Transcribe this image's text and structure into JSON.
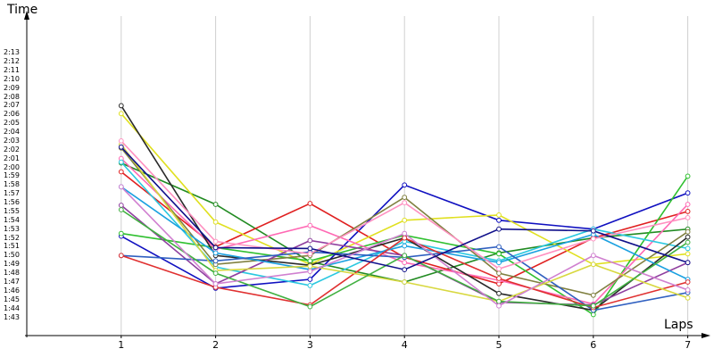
{
  "chart_data": {
    "type": "line",
    "ylabel": "Time",
    "xlabel": "Laps",
    "x": [
      1,
      2,
      3,
      4,
      5,
      6,
      7
    ],
    "y_ticks": [
      "1:43",
      "1:44",
      "1:45",
      "1:46",
      "1:47",
      "1:48",
      "1:49",
      "1:50",
      "1:51",
      "1:52",
      "1:53",
      "1:54",
      "1:55",
      "1:56",
      "1:57",
      "1:58",
      "1:59",
      "2:00",
      "2:01",
      "2:02",
      "2:03",
      "2:04",
      "2:05",
      "2:06",
      "2:07",
      "2:08",
      "2:09",
      "2:10",
      "2:11",
      "2:12",
      "2:13"
    ],
    "y_tick_seconds": [
      103,
      104,
      105,
      106,
      107,
      108,
      109,
      110,
      111,
      112,
      113,
      114,
      115,
      116,
      117,
      118,
      119,
      120,
      121,
      122,
      123,
      124,
      125,
      126,
      127,
      128,
      129,
      130,
      131,
      132,
      133
    ],
    "ylim_seconds": [
      101,
      138
    ],
    "grid": "vertical",
    "markers": "hollow circles",
    "series": [
      {
        "color": "#1010c0",
        "values": [
          112.2,
          106.3,
          107.3,
          118.0,
          114.0,
          113.0,
          117.1
        ]
      },
      {
        "color": "#228b22",
        "values": [
          120.5,
          115.8,
          109.3,
          107.0,
          110.3,
          112.0,
          113.0
        ]
      },
      {
        "color": "#e02020",
        "values": [
          119.5,
          111.0,
          115.9,
          109.8,
          106.8,
          112.0,
          115.0
        ]
      },
      {
        "color": "#e0e020",
        "values": [
          126.1,
          113.8,
          109.0,
          114.0,
          114.6,
          109.0,
          110.2
        ]
      },
      {
        "color": "#30c030",
        "values": [
          112.5,
          110.9,
          109.4,
          112.3,
          110.2,
          103.3,
          119.0
        ]
      },
      {
        "color": "#ff69b4",
        "values": [
          121.0,
          110.7,
          113.4,
          109.2,
          107.2,
          104.5,
          115.8
        ]
      },
      {
        "color": "#2bc8e0",
        "values": [
          120.6,
          108.7,
          106.6,
          111.6,
          109.4,
          113.0,
          110.8
        ]
      },
      {
        "color": "#808040",
        "values": [
          122.2,
          109.0,
          110.0,
          116.6,
          108.0,
          105.5,
          112.7
        ]
      },
      {
        "color": "#2a2a2a",
        "values": [
          127.0,
          110.0,
          108.9,
          112.0,
          105.7,
          103.8,
          112.1
        ]
      },
      {
        "color": "#8f3f9f",
        "values": [
          115.7,
          106.8,
          111.7,
          110.0,
          104.7,
          104.4,
          109.2
        ]
      },
      {
        "color": "#1aa0e0",
        "values": [
          117.8,
          110.3,
          108.4,
          111.1,
          109.2,
          112.4,
          107.3
        ]
      },
      {
        "color": "#3060c0",
        "values": [
          110.0,
          109.4,
          110.4,
          109.8,
          111.0,
          103.8,
          105.8
        ]
      },
      {
        "color": "#e03030",
        "values": [
          110.0,
          106.4,
          104.4,
          112.0,
          107.4,
          104.1,
          107.0
        ]
      },
      {
        "color": "#d8d840",
        "values": [
          122.6,
          108.3,
          108.8,
          107.0,
          104.8,
          109.0,
          105.2
        ]
      },
      {
        "color": "#ff90c0",
        "values": [
          123.0,
          111.6,
          110.2,
          116.0,
          108.5,
          111.9,
          114.3
        ]
      },
      {
        "color": "#40b040",
        "values": [
          115.2,
          108.0,
          104.2,
          110.0,
          104.8,
          104.3,
          111.5
        ]
      },
      {
        "color": "#d080d0",
        "values": [
          117.8,
          106.8,
          108.2,
          112.5,
          104.3,
          110.0,
          106.1
        ]
      },
      {
        "color": "#10108a",
        "values": [
          122.3,
          110.9,
          110.8,
          108.4,
          113.0,
          112.8,
          109.2
        ]
      }
    ]
  }
}
